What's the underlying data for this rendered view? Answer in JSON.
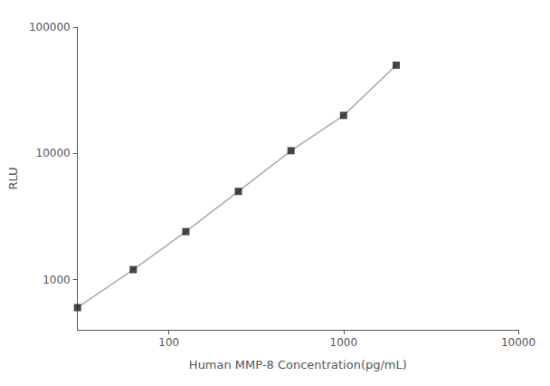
{
  "chart_data": {
    "type": "line",
    "x": [
      30,
      62.5,
      125,
      250,
      500,
      1000,
      2000
    ],
    "series": [
      {
        "type": "line",
        "color": "#aaaaaa",
        "values": [
          600,
          1200,
          2400,
          5000,
          10500,
          20000,
          50000
        ]
      },
      {
        "type": "scatter",
        "color": "#1a1a1a",
        "marker": "square",
        "values": [
          600,
          1200,
          2400,
          5000,
          10500,
          20000,
          50000
        ]
      }
    ],
    "xlabel": "Human MMP-8 Concentration(pg/mL)",
    "ylabel": "RLU",
    "xlim": [
      30,
      10000
    ],
    "ylim": [
      400,
      100000
    ],
    "xticks": [
      100,
      1000,
      10000
    ],
    "yticks": [
      1000,
      10000,
      100000
    ],
    "log": true,
    "grid": false
  }
}
